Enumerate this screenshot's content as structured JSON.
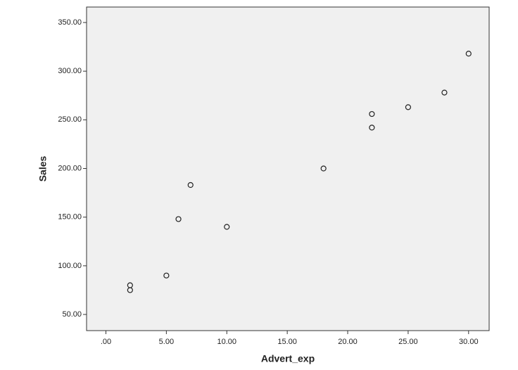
{
  "chart_data": {
    "type": "scatter",
    "x_label": "Advert_exp",
    "y_label": "Sales",
    "series": [
      {
        "name": "Sales",
        "color": "#222222",
        "x": [
          2,
          2,
          5,
          6,
          7,
          10,
          18,
          22,
          22,
          25,
          28,
          30
        ],
        "values": [
          80,
          75,
          90,
          148,
          183,
          140,
          200,
          256,
          242,
          263,
          278,
          318
        ]
      }
    ],
    "xlim": [
      -1.6,
      31.7
    ],
    "ylim": [
      33.4,
      365.9
    ],
    "xticks": [
      {
        "value": 0,
        "label": ".00"
      },
      {
        "value": 5,
        "label": "5.00"
      },
      {
        "value": 10,
        "label": "10.00"
      },
      {
        "value": 15,
        "label": "15.00"
      },
      {
        "value": 20,
        "label": "20.00"
      },
      {
        "value": 25,
        "label": "25.00"
      },
      {
        "value": 30,
        "label": "30.00"
      }
    ],
    "yticks": [
      {
        "value": 50,
        "label": "50.00"
      },
      {
        "value": 100,
        "label": "100.00"
      },
      {
        "value": 150,
        "label": "150.00"
      },
      {
        "value": 200,
        "label": "200.00"
      },
      {
        "value": 250,
        "label": "250.00"
      },
      {
        "value": 300,
        "label": "300.00"
      },
      {
        "value": 350,
        "label": "350.00"
      }
    ],
    "background": "#f0f0f0"
  }
}
